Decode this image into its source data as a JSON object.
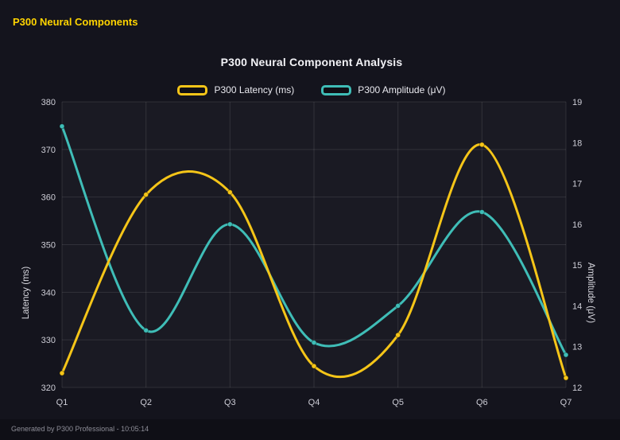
{
  "page": {
    "header_title": "P300 Neural Components",
    "footer": "Generated by P300 Professional - 10:05:14"
  },
  "chart_data": {
    "type": "line",
    "title": "P300 Neural Component Analysis",
    "categories": [
      "Q1",
      "Q2",
      "Q3",
      "Q4",
      "Q5",
      "Q6",
      "Q7"
    ],
    "series": [
      {
        "name": "P300 Latency (ms)",
        "axis": "left",
        "color": "#f5c518",
        "values": [
          323,
          360.5,
          361,
          324.5,
          331,
          371,
          322
        ]
      },
      {
        "name": "P300 Amplitude (μV)",
        "axis": "right",
        "color": "#3fbdb7",
        "values": [
          18.4,
          13.4,
          16.0,
          13.1,
          14.0,
          16.3,
          12.8
        ]
      }
    ],
    "left_axis": {
      "label": "Latency (ms)",
      "min": 320,
      "max": 380,
      "ticks": [
        320,
        330,
        340,
        350,
        360,
        370,
        380
      ]
    },
    "right_axis": {
      "label": "Amplitude (μV)",
      "min": 12,
      "max": 19,
      "ticks": [
        12,
        13,
        14,
        15,
        16,
        17,
        18,
        19
      ]
    },
    "x_axis": {
      "ticks": [
        "Q1",
        "Q2",
        "Q3",
        "Q4",
        "Q5",
        "Q6",
        "Q7"
      ]
    },
    "grid": true,
    "legend_position": "top",
    "curve": "smooth"
  }
}
